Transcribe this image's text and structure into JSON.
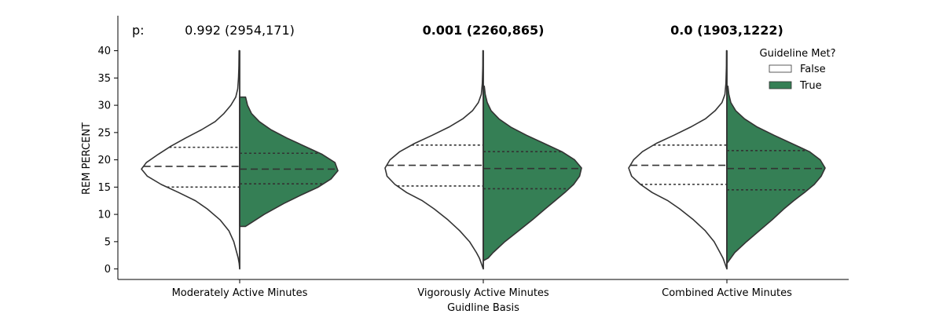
{
  "chart_data": {
    "type": "violin",
    "ylabel": "REM PERCENT",
    "xlabel": "Guidline Basis",
    "ylim": [
      0,
      40
    ],
    "yticks": [
      0,
      5,
      10,
      15,
      20,
      25,
      30,
      35,
      40
    ],
    "categories": [
      "Moderately Active Minutes",
      "Vigorously Active Minutes",
      "Combined Active Minutes"
    ],
    "p_prefix": "p:",
    "p_values": [
      {
        "text": "0.992 (2954,171)",
        "bold": false
      },
      {
        "text": "0.001 (2260,865)",
        "bold": true
      },
      {
        "text": "0.0 (1903,1222)",
        "bold": true
      }
    ],
    "legend": {
      "title": "Guideline Met?",
      "placement": "top-right",
      "entries": [
        {
          "label": "False",
          "color": "#ffffff"
        },
        {
          "label": "True",
          "color": "#357f55"
        }
      ]
    },
    "series": [
      {
        "name": "False",
        "color": "#ffffff",
        "quartiles": [
          {
            "q1": 15.0,
            "median": 18.8,
            "q3": 22.3
          },
          {
            "q1": 15.2,
            "median": 19.0,
            "q3": 22.7
          },
          {
            "q1": 15.5,
            "median": 19.0,
            "q3": 22.7
          }
        ]
      },
      {
        "name": "True",
        "color": "#357f55",
        "quartiles": [
          {
            "q1": 15.6,
            "median": 18.3,
            "q3": 21.2
          },
          {
            "q1": 14.7,
            "median": 18.4,
            "q3": 21.5
          },
          {
            "q1": 14.5,
            "median": 18.4,
            "q3": 21.7
          }
        ]
      }
    ]
  }
}
